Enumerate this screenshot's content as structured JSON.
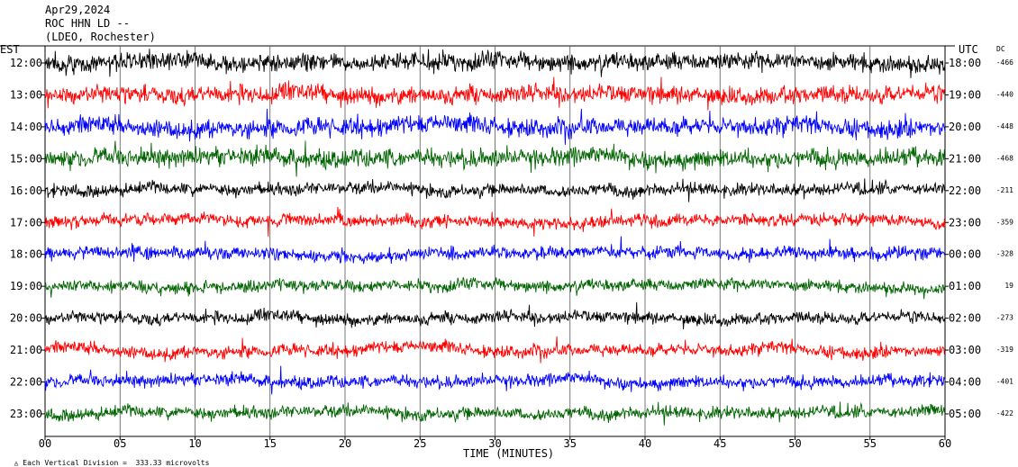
{
  "header": {
    "date": "Apr29,2024",
    "station": "ROC HHN LD --",
    "network": "(LDEO, Rochester)"
  },
  "footer": {
    "scale_note": "Each Vertical Division =  333.33 microvolts"
  },
  "colors": {
    "trace_cycle": [
      "#000000",
      "#ff0000",
      "#0000ff",
      "#006400"
    ],
    "grid": "#000000",
    "background": "#ffffff"
  },
  "chart_data": {
    "type": "line",
    "title": "",
    "xlabel": "TIME (MINUTES)",
    "left_axis_label": "EST",
    "right_axis_label": "UTC",
    "dc_header": "DC",
    "xlim": [
      0,
      60
    ],
    "x_ticks": [
      "00",
      "05",
      "10",
      "15",
      "20",
      "25",
      "30",
      "35",
      "40",
      "45",
      "50",
      "55",
      "60"
    ],
    "grid": true,
    "rows": [
      {
        "est": "12:00",
        "utc": "18:00",
        "dc": "-466",
        "color": "#000000",
        "activity": "high"
      },
      {
        "est": "13:00",
        "utc": "19:00",
        "dc": "-440",
        "color": "#ff0000",
        "activity": "high"
      },
      {
        "est": "14:00",
        "utc": "20:00",
        "dc": "-448",
        "color": "#0000ff",
        "activity": "high"
      },
      {
        "est": "15:00",
        "utc": "21:00",
        "dc": "-468",
        "color": "#006400",
        "activity": "high"
      },
      {
        "est": "16:00",
        "utc": "22:00",
        "dc": "-211",
        "color": "#000000",
        "activity": "medium"
      },
      {
        "est": "17:00",
        "utc": "23:00",
        "dc": "-359",
        "color": "#ff0000",
        "activity": "medium"
      },
      {
        "est": "18:00",
        "utc": "00:00",
        "dc": "-328",
        "color": "#0000ff",
        "activity": "medium"
      },
      {
        "est": "19:00",
        "utc": "01:00",
        "dc": "19",
        "color": "#006400",
        "activity": "medium"
      },
      {
        "est": "20:00",
        "utc": "02:00",
        "dc": "-273",
        "color": "#000000",
        "activity": "medium"
      },
      {
        "est": "21:00",
        "utc": "03:00",
        "dc": "-319",
        "color": "#ff0000",
        "activity": "medium"
      },
      {
        "est": "22:00",
        "utc": "04:00",
        "dc": "-401",
        "color": "#0000ff",
        "activity": "medium"
      },
      {
        "est": "23:00",
        "utc": "05:00",
        "dc": "-422",
        "color": "#006400",
        "activity": "medium"
      }
    ]
  }
}
